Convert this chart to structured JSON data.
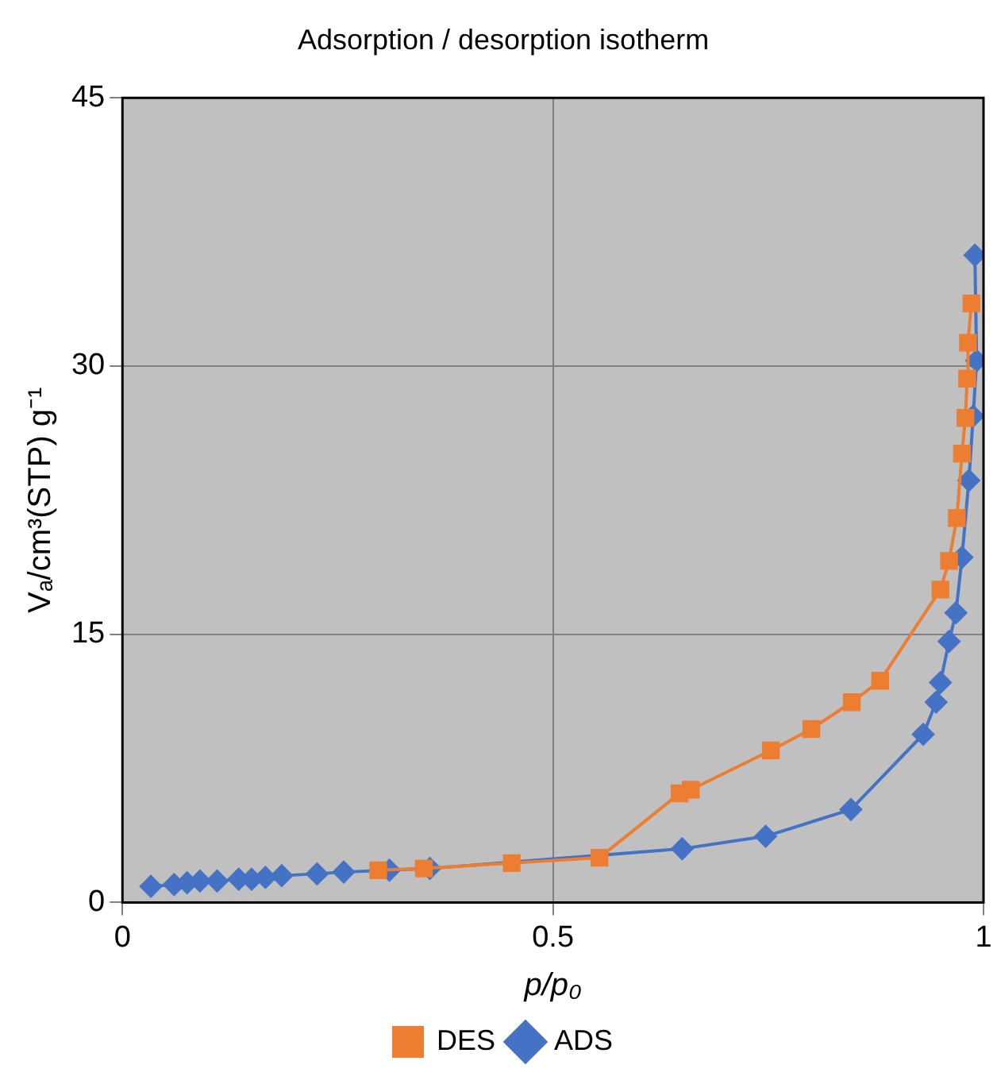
{
  "chart_data": {
    "type": "line",
    "title": "Adsorption / desorption isotherm",
    "xlabel": "p/p₀",
    "ylabel": "Vₐ/cm³(STP) g⁻¹",
    "xlim": [
      0,
      1
    ],
    "xticks": [
      0,
      0.5,
      1
    ],
    "ylim": [
      0,
      45
    ],
    "yticks": [
      0,
      15,
      30,
      45
    ],
    "grid": true,
    "legend": "bottom",
    "line_style": "solid",
    "series": [
      {
        "name": "ADS",
        "color": "#4472c4",
        "marker": "diamond",
        "x": [
          0.033,
          0.06,
          0.075,
          0.09,
          0.11,
          0.135,
          0.15,
          0.166,
          0.185,
          0.226,
          0.257,
          0.31,
          0.357,
          0.65,
          0.747,
          0.846,
          0.93,
          0.945,
          0.95,
          0.96,
          0.968,
          0.975,
          0.983,
          0.988,
          0.992,
          0.99
        ],
        "values": [
          0.9,
          1.0,
          1.1,
          1.2,
          1.2,
          1.3,
          1.3,
          1.4,
          1.5,
          1.6,
          1.7,
          1.8,
          1.9,
          3.0,
          3.7,
          5.2,
          9.4,
          11.2,
          12.3,
          14.6,
          16.2,
          19.3,
          23.6,
          27.2,
          30.3,
          36.2
        ]
      },
      {
        "name": "DES",
        "color": "#ed7d31",
        "marker": "square",
        "x": [
          0.297,
          0.35,
          0.452,
          0.554,
          0.647,
          0.66,
          0.753,
          0.8,
          0.847,
          0.88,
          0.95,
          0.96,
          0.969,
          0.975,
          0.979,
          0.981,
          0.982,
          0.986
        ],
        "values": [
          1.8,
          1.9,
          2.2,
          2.5,
          6.1,
          6.3,
          8.5,
          9.7,
          11.2,
          12.4,
          17.5,
          19.1,
          21.5,
          25.1,
          27.1,
          29.3,
          31.3,
          33.5
        ]
      }
    ]
  }
}
